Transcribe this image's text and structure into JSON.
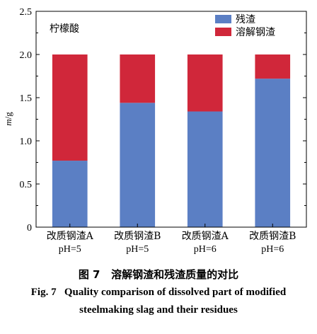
{
  "chart_data": {
    "type": "bar",
    "stacked": true,
    "annotation": "柠檬酸",
    "ylabel": "m/g",
    "ylim": [
      0,
      2.5
    ],
    "yticks": [
      "0",
      "0.5",
      "1.0",
      "1.5",
      "2.0",
      "2.5"
    ],
    "ytick_values": [
      0,
      0.5,
      1.0,
      1.5,
      2.0,
      2.5
    ],
    "categories": [
      [
        "改质钢渣A",
        "pH=5"
      ],
      [
        "改质钢渣B",
        "pH=5"
      ],
      [
        "改质钢渣A",
        "pH=6"
      ],
      [
        "改质钢渣B",
        "pH=6"
      ]
    ],
    "series": [
      {
        "name": "残渣",
        "color": "#5b7fc4",
        "values": [
          0.77,
          1.44,
          1.34,
          1.72
        ]
      },
      {
        "name": "溶解钢渣",
        "color": "#d0273a",
        "values": [
          1.23,
          0.56,
          0.66,
          0.28
        ]
      }
    ],
    "legend_position": "top-right",
    "grid": false
  },
  "caption": {
    "cn_label": "图 7",
    "cn_text": "溶解钢渣和残渣质量的对比",
    "en_label": "Fig. 7",
    "en_line1": "Quality comparison of dissolved part of modified",
    "en_line2": "steelmaking slag and their residues"
  }
}
